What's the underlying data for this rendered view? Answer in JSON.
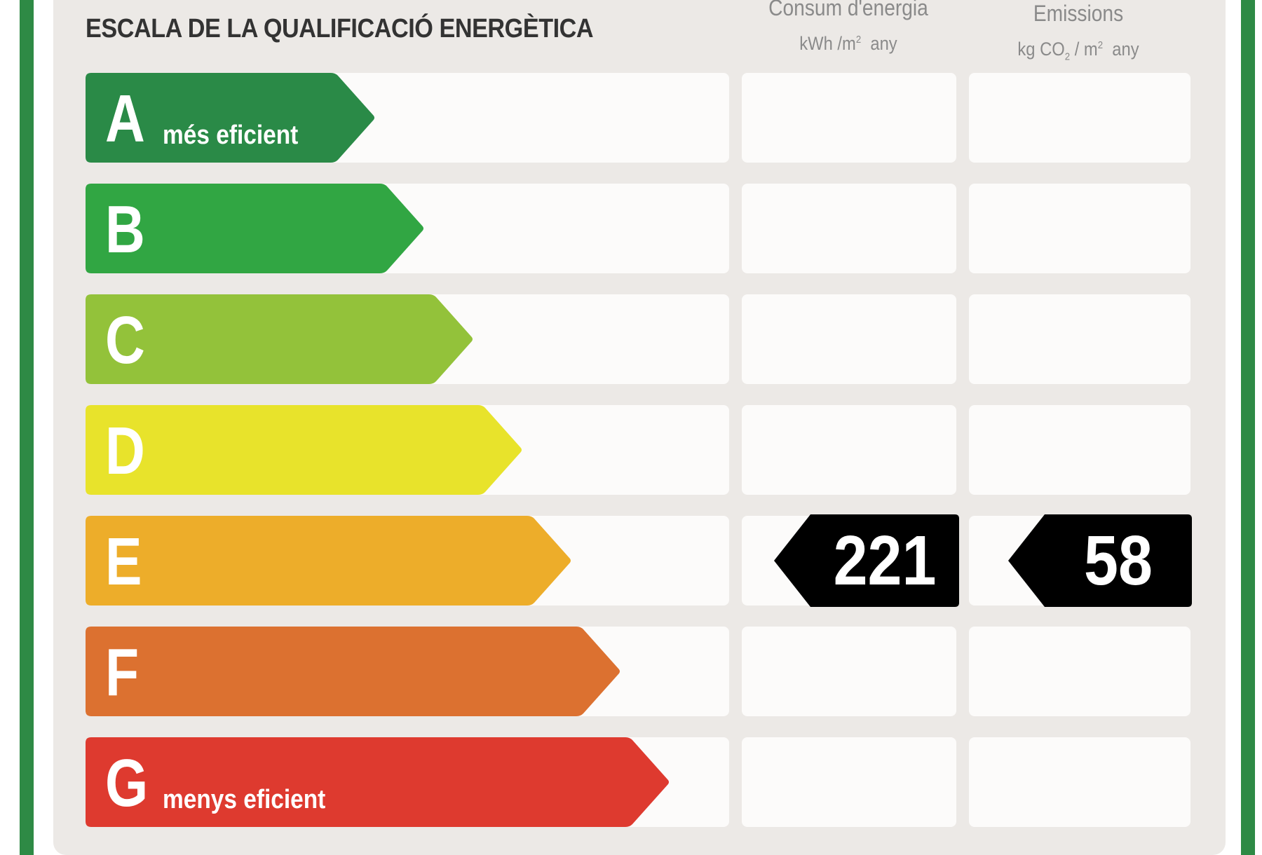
{
  "title": "ESCALA DE LA QUALIFICACIÓ ENERGÈTICA",
  "columns": {
    "energy": {
      "label": "Consum d'energia",
      "unit_prefix": "kWh /m",
      "unit_exp": "2",
      "unit_suffix": "any"
    },
    "emissions": {
      "label": "Emissions",
      "unit_prefix": "kg CO",
      "unit_sub": "2",
      "unit_mid": " / m",
      "unit_exp": "2",
      "unit_suffix": "any"
    }
  },
  "ratings": [
    {
      "letter": "A",
      "sublabel": "més eficient",
      "color": "#2a8a47"
    },
    {
      "letter": "B",
      "sublabel": "",
      "color": "#31a643"
    },
    {
      "letter": "C",
      "sublabel": "",
      "color": "#93c23a"
    },
    {
      "letter": "D",
      "sublabel": "",
      "color": "#e8e32b"
    },
    {
      "letter": "E",
      "sublabel": "",
      "color": "#edad2a"
    },
    {
      "letter": "F",
      "sublabel": "",
      "color": "#dc7130"
    },
    {
      "letter": "G",
      "sublabel": "menys eficient",
      "color": "#de3a2f"
    }
  ],
  "result": {
    "rating": "E",
    "energy_value": "221",
    "emissions_value": "58",
    "indicator_color": "#000000"
  }
}
